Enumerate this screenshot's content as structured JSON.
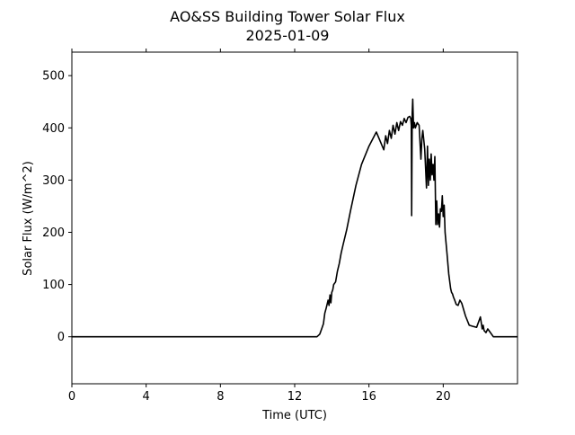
{
  "chart_data": {
    "type": "line",
    "title": "AO&SS Building Tower Solar Flux",
    "subtitle": "2025-01-09",
    "xlabel": "Time (UTC)",
    "ylabel": "Solar Flux (W/m^2)",
    "xlim": [
      0,
      24
    ],
    "ylim": [
      -90,
      545
    ],
    "xticks": [
      0,
      4,
      8,
      12,
      16,
      20
    ],
    "xtick_labels": [
      "0",
      "4",
      "8",
      "12",
      "16",
      "20"
    ],
    "yticks": [
      0,
      100,
      200,
      300,
      400,
      500
    ],
    "ytick_labels": [
      "0",
      "100",
      "200",
      "300",
      "400",
      "500"
    ],
    "grid": false,
    "line_color": "#000000",
    "series": [
      {
        "x": [
          0,
          13.2,
          13.35,
          13.45,
          13.55,
          13.62,
          13.7,
          13.8,
          13.85,
          13.9,
          13.95,
          14.0,
          14.05,
          14.1,
          14.2,
          14.3,
          14.4,
          14.5,
          14.6,
          14.8,
          15.0,
          15.3,
          15.6,
          16.0,
          16.4,
          16.8,
          16.9,
          17.0,
          17.1,
          17.2,
          17.3,
          17.4,
          17.5,
          17.6,
          17.7,
          17.8,
          17.9,
          18.0,
          18.1,
          18.2,
          18.25,
          18.28,
          18.3,
          18.33,
          18.36,
          18.4,
          18.45,
          18.5,
          18.6,
          18.7,
          18.8,
          18.85,
          18.9,
          19.0,
          19.1,
          19.15,
          19.2,
          19.25,
          19.3,
          19.35,
          19.4,
          19.45,
          19.5,
          19.55,
          19.6,
          19.65,
          19.7,
          19.75,
          19.8,
          19.85,
          19.9,
          19.95,
          20.0,
          20.05,
          20.1,
          20.2,
          20.3,
          20.4,
          20.45,
          20.5,
          20.55,
          20.6,
          20.7,
          20.8,
          20.9,
          21.0,
          21.2,
          21.4,
          21.6,
          21.8,
          22.0,
          22.1,
          22.15,
          22.2,
          22.3,
          22.4,
          22.5,
          22.6,
          22.7,
          22.8,
          22.9,
          23.0,
          24.0
        ],
        "y": [
          0,
          0,
          5,
          15,
          25,
          45,
          55,
          70,
          60,
          80,
          65,
          85,
          90,
          100,
          105,
          125,
          140,
          160,
          175,
          205,
          240,
          290,
          330,
          365,
          392,
          358,
          385,
          370,
          395,
          380,
          405,
          388,
          410,
          395,
          412,
          405,
          418,
          410,
          420,
          422,
          418,
          405,
          232,
          428,
          455,
          400,
          410,
          400,
          410,
          405,
          340,
          380,
          395,
          360,
          285,
          365,
          290,
          340,
          300,
          350,
          310,
          330,
          300,
          345,
          215,
          260,
          215,
          235,
          210,
          245,
          240,
          270,
          230,
          252,
          200,
          160,
          120,
          92,
          85,
          82,
          76,
          72,
          62,
          60,
          70,
          64,
          40,
          22,
          20,
          18,
          38,
          15,
          22,
          12,
          8,
          15,
          10,
          5,
          0,
          0,
          0,
          0,
          0
        ]
      }
    ]
  }
}
